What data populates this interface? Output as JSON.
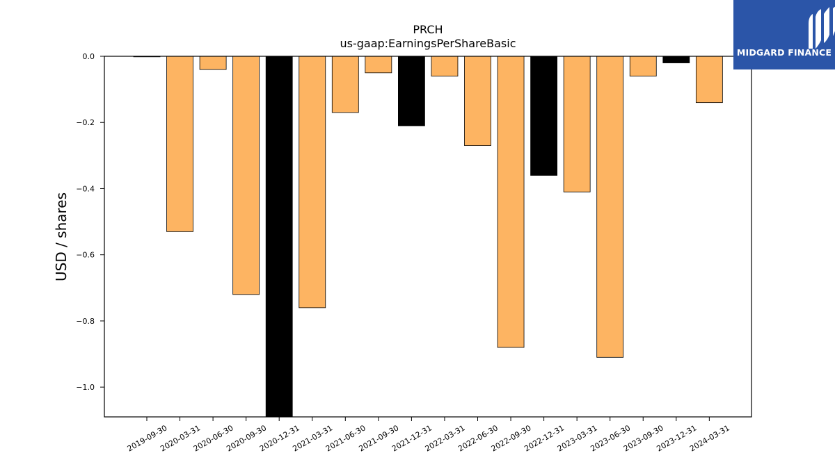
{
  "chart_data": {
    "type": "bar",
    "title": "PRCH",
    "subtitle": "us-gaap:EarningsPerShareBasic",
    "xlabel": "",
    "ylabel": "USD / shares",
    "ylim": [
      -1.09,
      0.0
    ],
    "yticks": [
      "0.0",
      "−0.2",
      "−0.4",
      "−0.6",
      "−0.8",
      "−1.0"
    ],
    "ytick_values": [
      0.0,
      -0.2,
      -0.4,
      -0.6,
      -0.8,
      -1.0
    ],
    "categories": [
      "2019-09-30",
      "2020-03-31",
      "2020-06-30",
      "2020-09-30",
      "2020-12-31",
      "2021-03-31",
      "2021-06-30",
      "2021-09-30",
      "2021-12-31",
      "2022-03-31",
      "2022-06-30",
      "2022-09-30",
      "2022-12-31",
      "2023-03-31",
      "2023-06-30",
      "2023-09-30",
      "2023-12-31",
      "2024-03-31"
    ],
    "values": [
      0.0,
      -0.53,
      -0.04,
      -0.72,
      -1.09,
      -0.76,
      -0.17,
      -0.05,
      -0.21,
      -0.06,
      -0.27,
      -0.88,
      -0.36,
      -0.41,
      -0.91,
      -0.06,
      -0.02,
      -0.14
    ],
    "bar_colors": [
      "#fdb462",
      "#fdb462",
      "#fdb462",
      "#fdb462",
      "#000000",
      "#fdb462",
      "#fdb462",
      "#fdb462",
      "#000000",
      "#fdb462",
      "#fdb462",
      "#fdb462",
      "#000000",
      "#fdb462",
      "#fdb462",
      "#fdb462",
      "#000000",
      "#fdb462"
    ],
    "grid": false,
    "legend": "none"
  },
  "logo": {
    "text": "MIDGARD FINANCE",
    "background": "#2b55a8"
  }
}
